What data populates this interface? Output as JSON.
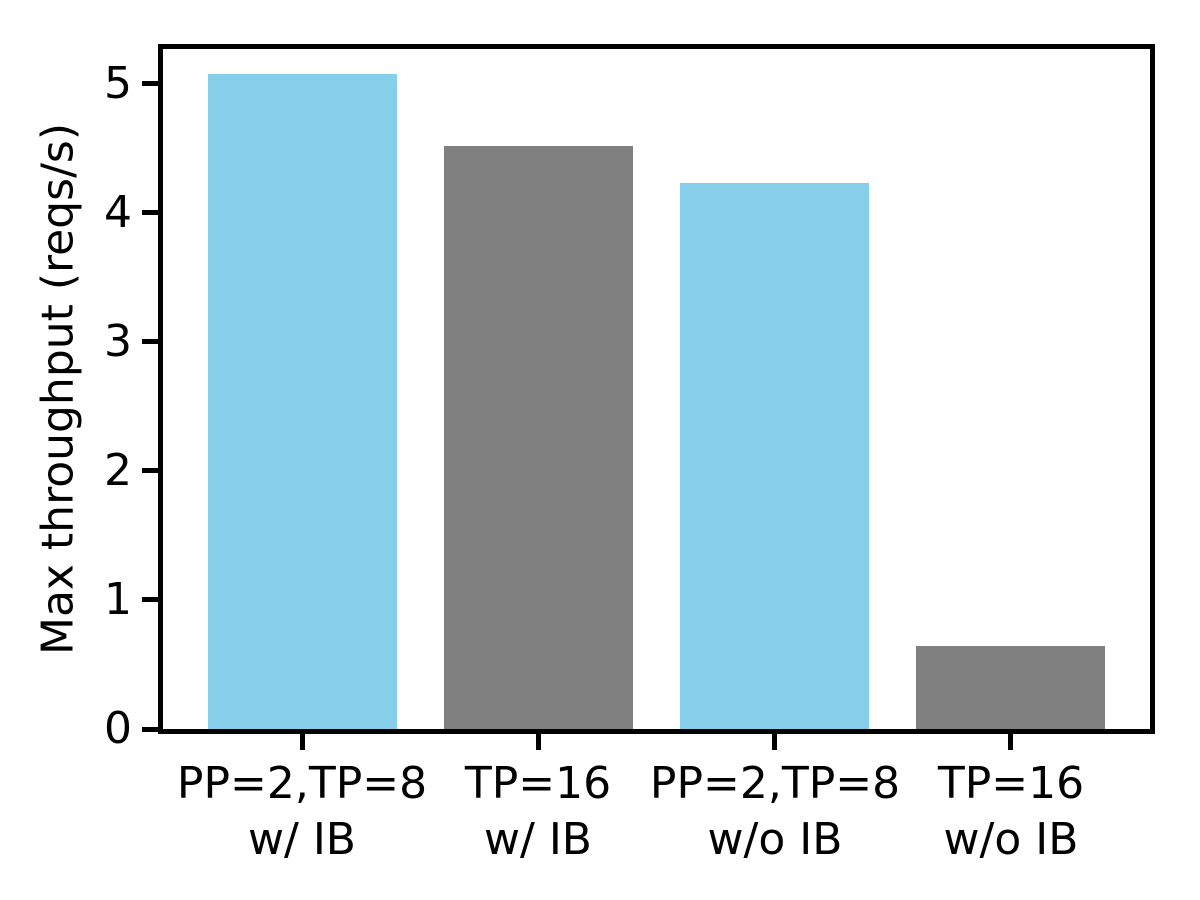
{
  "chart_data": {
    "type": "bar",
    "categories": [
      "PP=2,TP=8\nw/ IB",
      "TP=16\nw/ IB",
      "PP=2,TP=8\nw/o IB",
      "TP=16\nw/o IB"
    ],
    "values": [
      5.08,
      4.52,
      4.23,
      0.64
    ],
    "bar_colors": [
      "#87CEEB",
      "#808080",
      "#87CEEB",
      "#808080"
    ],
    "title": "",
    "xlabel": "",
    "ylabel": "Max throughput (reqs/s)",
    "ytick_labels": [
      "0",
      "1",
      "2",
      "3",
      "4",
      "5"
    ],
    "yticks": [
      0,
      1,
      2,
      3,
      4,
      5
    ],
    "ylim": [
      0,
      5.27
    ],
    "grid": false,
    "legend": "none",
    "bar_width_fraction": 0.8,
    "x_edge_margin_units": 0.59
  },
  "colors": {
    "axis": "#000000",
    "background": "#ffffff",
    "bar_blue": "#87CEEB",
    "bar_gray": "#808080"
  }
}
